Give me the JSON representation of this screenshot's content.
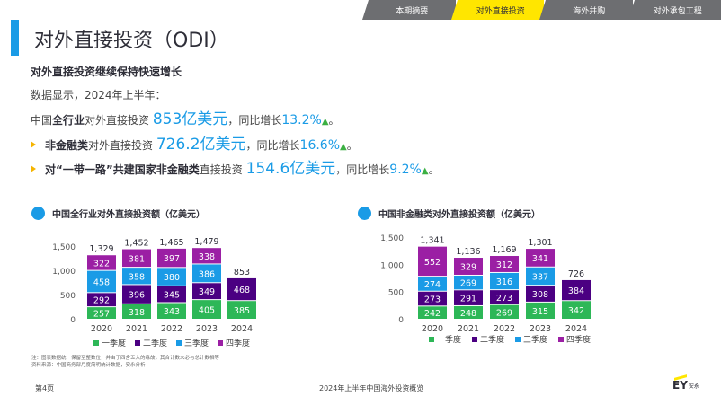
{
  "nav": {
    "tabs": [
      {
        "label": "本期摘要",
        "active": false
      },
      {
        "label": "对外直接投资",
        "active": true
      },
      {
        "label": "海外并购",
        "active": false
      },
      {
        "label": "对外承包工程",
        "active": false
      }
    ]
  },
  "page_title": "对外直接投资（ODI）",
  "subtitle": "对外直接投资继续保持快速增长",
  "intro": "数据显示，2024年上半年：",
  "line1": {
    "pre": "中国",
    "bold": "全行业",
    "mid": "对外直接投资 ",
    "value": "853亿美元",
    "post": "，同比增长",
    "pct": "13.2%",
    "arrow": "▲",
    "end": "。"
  },
  "line2": {
    "bold": "非金融类",
    "mid": "对外直接投资 ",
    "value": "726.2亿美元",
    "post": "，同比增长",
    "pct": "16.6%",
    "arrow": "▲",
    "end": "。"
  },
  "line3": {
    "bold": "对“一带一路”共建国家非金融类",
    "mid": "直接投资 ",
    "value": "154.6亿美元",
    "post": "，同比增长",
    "pct": "9.2%",
    "arrow": "▲",
    "end": "。"
  },
  "colors": {
    "q1": "#2db757",
    "q2": "#4b0082",
    "q3": "#1a9be6",
    "q4": "#9b1fa4",
    "accent": "#ffe600",
    "blue": "#1a9be6"
  },
  "chart_data": [
    {
      "type": "bar",
      "stacked": true,
      "title": "中国全行业对外直接投资额（亿美元）",
      "categories": [
        "2020",
        "2021",
        "2022",
        "2023",
        "2024"
      ],
      "ylim": [
        0,
        1500
      ],
      "yticks": [
        "0",
        "500",
        "1,000",
        "1,500"
      ],
      "series": [
        {
          "name": "一季度",
          "values": [
            257,
            318,
            343,
            405,
            385
          ]
        },
        {
          "name": "二季度",
          "values": [
            292,
            396,
            345,
            349,
            468
          ]
        },
        {
          "name": "三季度",
          "values": [
            458,
            358,
            380,
            386,
            null
          ]
        },
        {
          "name": "四季度",
          "values": [
            322,
            381,
            397,
            338,
            null
          ]
        }
      ],
      "totals": [
        "1,329",
        "1,452",
        "1,465",
        "1,479",
        "853"
      ]
    },
    {
      "type": "bar",
      "stacked": true,
      "title": "中国非金融类对外直接投资额（亿美元）",
      "categories": [
        "2020",
        "2021",
        "2022",
        "2023",
        "2024"
      ],
      "ylim": [
        0,
        1500
      ],
      "yticks": [
        "0",
        "500",
        "1,000",
        "1,500"
      ],
      "series": [
        {
          "name": "一季度",
          "values": [
            242,
            248,
            269,
            315,
            342
          ]
        },
        {
          "name": "二季度",
          "values": [
            273,
            291,
            273,
            308,
            384
          ]
        },
        {
          "name": "三季度",
          "values": [
            274,
            269,
            316,
            337,
            null
          ]
        },
        {
          "name": "四季度",
          "values": [
            552,
            329,
            312,
            341,
            null
          ]
        }
      ],
      "totals": [
        "1,341",
        "1,136",
        "1,169",
        "1,301",
        "726"
      ]
    }
  ],
  "footnote": {
    "line1": "注：图表数据统一保留至整数位，并由于四舍五入的缘故，其合计数未必与总计数相等",
    "line2": "资料来源：中国商务部月度简明统计数据，安永分析"
  },
  "footer": {
    "page": "第4页",
    "title": "2024年上半年中国海外投资概览"
  },
  "logo": {
    "brand": "EY",
    "cn": "安永"
  }
}
